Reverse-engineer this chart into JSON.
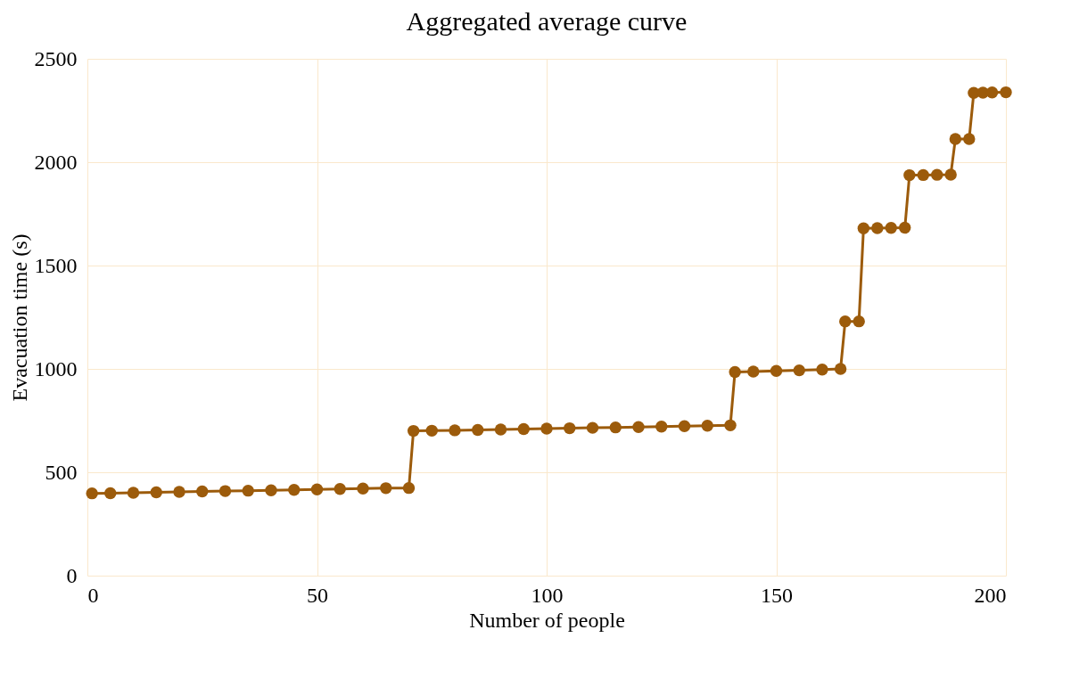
{
  "chart_data": {
    "type": "line",
    "title": "Aggregated average curve",
    "xlabel": "Number of people",
    "ylabel": "Evacuation time (s)",
    "x": [
      1,
      5,
      10,
      15,
      20,
      25,
      30,
      35,
      40,
      45,
      50,
      55,
      60,
      65,
      70,
      71,
      75,
      80,
      85,
      90,
      95,
      100,
      105,
      110,
      115,
      120,
      125,
      130,
      135,
      140,
      141,
      145,
      150,
      155,
      160,
      164,
      165,
      168,
      169,
      172,
      175,
      178,
      179,
      182,
      185,
      188,
      189,
      192,
      193,
      195,
      197,
      200
    ],
    "series": [
      {
        "color": "#9c5b0b",
        "values": [
          398,
          399,
          401,
          403,
          405,
          407,
          409,
          411,
          413,
          415,
          417,
          419,
          421,
          423,
          424,
          700,
          701,
          703,
          705,
          707,
          709,
          711,
          713,
          715,
          717,
          719,
          721,
          723,
          725,
          727,
          985,
          987,
          990,
          993,
          997,
          1000,
          1230,
          1230,
          1680,
          1681,
          1682,
          1683,
          1937,
          1938,
          1939,
          1940,
          2112,
          2112,
          2335,
          2336,
          2337,
          2338
        ]
      }
    ],
    "xlim": [
      0,
      200
    ],
    "xticks": [
      0,
      50,
      100,
      150,
      200
    ],
    "ylim": [
      0,
      2500
    ],
    "yticks": [
      0,
      500,
      1000,
      1500,
      2000,
      2500
    ],
    "grid": true,
    "marker": "circle",
    "line_style": "solid"
  }
}
